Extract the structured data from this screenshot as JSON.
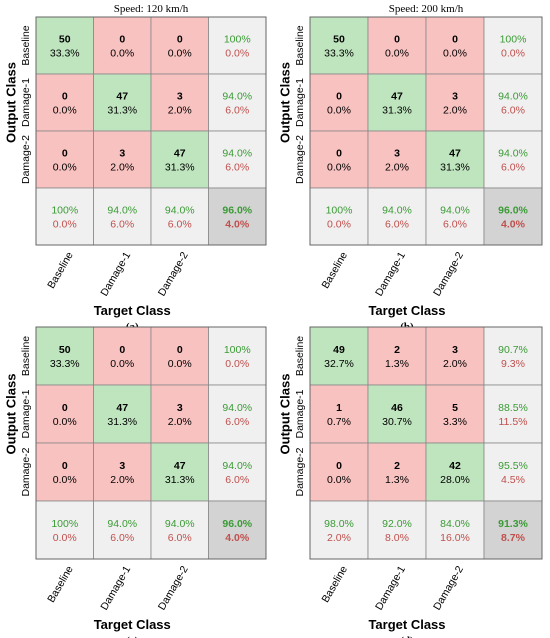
{
  "colors": {
    "correct": "#bfe5bf",
    "wrong": "#f8c2c0",
    "summary": "#f0f0f0",
    "total": "#d3d3d3",
    "green_text": "#3a9b35",
    "red_text": "#c0504d",
    "grid": "#888888"
  },
  "chart_data": [
    {
      "type": "heatmap",
      "title": "Speed: 120 km/h",
      "panel_label": "(a)",
      "xlabel": "Target Class",
      "ylabel": "Output Class",
      "classes": [
        "Baseline",
        "Damage-1",
        "Damage-2"
      ],
      "counts": [
        [
          50,
          0,
          0
        ],
        [
          0,
          47,
          3
        ],
        [
          0,
          3,
          47
        ]
      ],
      "cell_percent": [
        [
          "33.3%",
          "0.0%",
          "0.0%"
        ],
        [
          "0.0%",
          "31.3%",
          "2.0%"
        ],
        [
          "0.0%",
          "2.0%",
          "31.3%"
        ]
      ],
      "row_summary": [
        [
          "100%",
          "0.0%"
        ],
        [
          "94.0%",
          "6.0%"
        ],
        [
          "94.0%",
          "6.0%"
        ]
      ],
      "col_summary": [
        [
          "100%",
          "0.0%"
        ],
        [
          "94.0%",
          "6.0%"
        ],
        [
          "94.0%",
          "6.0%"
        ]
      ],
      "overall": [
        "96.0%",
        "4.0%"
      ]
    },
    {
      "type": "heatmap",
      "title": "Speed: 200 km/h",
      "panel_label": "(b)",
      "xlabel": "Target Class",
      "ylabel": "Output Class",
      "classes": [
        "Baseline",
        "Damage-1",
        "Damage-2"
      ],
      "counts": [
        [
          50,
          0,
          0
        ],
        [
          0,
          47,
          3
        ],
        [
          0,
          3,
          47
        ]
      ],
      "cell_percent": [
        [
          "33.3%",
          "0.0%",
          "0.0%"
        ],
        [
          "0.0%",
          "31.3%",
          "2.0%"
        ],
        [
          "0.0%",
          "2.0%",
          "31.3%"
        ]
      ],
      "row_summary": [
        [
          "100%",
          "0.0%"
        ],
        [
          "94.0%",
          "6.0%"
        ],
        [
          "94.0%",
          "6.0%"
        ]
      ],
      "col_summary": [
        [
          "100%",
          "0.0%"
        ],
        [
          "94.0%",
          "6.0%"
        ],
        [
          "94.0%",
          "6.0%"
        ]
      ],
      "overall": [
        "96.0%",
        "4.0%"
      ]
    },
    {
      "type": "heatmap",
      "title": "",
      "panel_label": "(c)",
      "xlabel": "Target Class",
      "ylabel": "Output Class",
      "classes": [
        "Baseline",
        "Damage-1",
        "Damage-2"
      ],
      "counts": [
        [
          50,
          0,
          0
        ],
        [
          0,
          47,
          3
        ],
        [
          0,
          3,
          47
        ]
      ],
      "cell_percent": [
        [
          "33.3%",
          "0.0%",
          "0.0%"
        ],
        [
          "0.0%",
          "31.3%",
          "2.0%"
        ],
        [
          "0.0%",
          "2.0%",
          "31.3%"
        ]
      ],
      "row_summary": [
        [
          "100%",
          "0.0%"
        ],
        [
          "94.0%",
          "6.0%"
        ],
        [
          "94.0%",
          "6.0%"
        ]
      ],
      "col_summary": [
        [
          "100%",
          "0.0%"
        ],
        [
          "94.0%",
          "6.0%"
        ],
        [
          "94.0%",
          "6.0%"
        ]
      ],
      "overall": [
        "96.0%",
        "4.0%"
      ]
    },
    {
      "type": "heatmap",
      "title": "",
      "panel_label": "(d)",
      "xlabel": "Target Class",
      "ylabel": "Output Class",
      "classes": [
        "Baseline",
        "Damage-1",
        "Damage-2"
      ],
      "counts": [
        [
          49,
          2,
          3
        ],
        [
          1,
          46,
          5
        ],
        [
          0,
          2,
          42
        ]
      ],
      "cell_percent": [
        [
          "32.7%",
          "1.3%",
          "2.0%"
        ],
        [
          "0.7%",
          "30.7%",
          "3.3%"
        ],
        [
          "0.0%",
          "1.3%",
          "28.0%"
        ]
      ],
      "row_summary": [
        [
          "90.7%",
          "9.3%"
        ],
        [
          "88.5%",
          "11.5%"
        ],
        [
          "95.5%",
          "4.5%"
        ]
      ],
      "col_summary": [
        [
          "98.0%",
          "2.0%"
        ],
        [
          "92.0%",
          "8.0%"
        ],
        [
          "84.0%",
          "16.0%"
        ]
      ],
      "overall": [
        "91.3%",
        "8.7%"
      ]
    }
  ]
}
